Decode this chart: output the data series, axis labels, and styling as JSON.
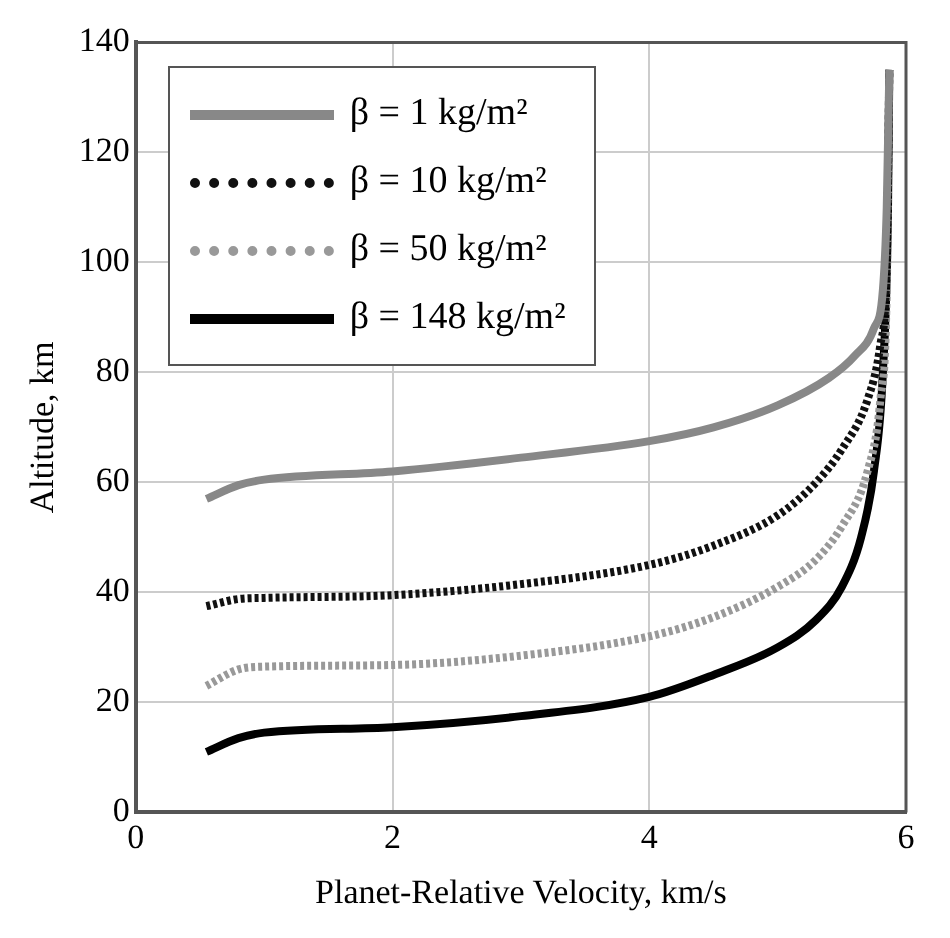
{
  "chart_data": {
    "type": "line",
    "xlabel": "Planet-Relative Velocity, km/s",
    "ylabel": "Altitude, km",
    "xlim": [
      0,
      6
    ],
    "xticks": [
      0,
      2,
      4,
      6
    ],
    "ylim": [
      0,
      140
    ],
    "yticks": [
      0,
      20,
      40,
      60,
      80,
      100,
      120,
      140
    ],
    "grid": true,
    "legend": "top left",
    "marker": "none",
    "series": [
      {
        "name": "β = 1 kg/m²",
        "color": "#888888",
        "line_style": "solid",
        "x": [
          0.55,
          0.8,
          1,
          2,
          3,
          4,
          4.5,
          5,
          5.4,
          5.6,
          5.75,
          5.82,
          5.85,
          5.87
        ],
        "values": [
          57,
          59.5,
          60.5,
          62,
          64.5,
          67.5,
          70,
          74,
          79,
          83,
          88,
          95,
          110,
          135
        ]
      },
      {
        "name": "β = 10 kg/m²",
        "color": "#111111",
        "line_style": "dotted",
        "x": [
          0.55,
          0.8,
          1,
          2,
          3,
          4,
          4.5,
          5,
          5.3,
          5.5,
          5.7,
          5.8,
          5.85,
          5.87
        ],
        "values": [
          37.5,
          38.8,
          39,
          39.5,
          41.5,
          45,
          48.5,
          54,
          60,
          66,
          75,
          85,
          100,
          135
        ]
      },
      {
        "name": "β = 50 kg/m²",
        "color": "#999999",
        "line_style": "dotted",
        "x": [
          0.55,
          0.8,
          1,
          2,
          3,
          4,
          4.5,
          5,
          5.3,
          5.5,
          5.7,
          5.8,
          5.85,
          5.87
        ],
        "values": [
          23,
          26,
          26.5,
          26.8,
          28.5,
          32,
          35.5,
          41,
          46,
          52,
          62,
          75,
          95,
          135
        ]
      },
      {
        "name": "β = 148 kg/m²",
        "color": "#000000",
        "line_style": "solid",
        "x": [
          0.55,
          0.8,
          1,
          2,
          3,
          4,
          4.5,
          5,
          5.3,
          5.5,
          5.65,
          5.75,
          5.82,
          5.86,
          5.87
        ],
        "values": [
          11,
          13.5,
          14.5,
          15.5,
          17.5,
          21,
          25,
          30,
          35,
          41,
          50,
          62,
          80,
          110,
          135
        ]
      }
    ]
  }
}
